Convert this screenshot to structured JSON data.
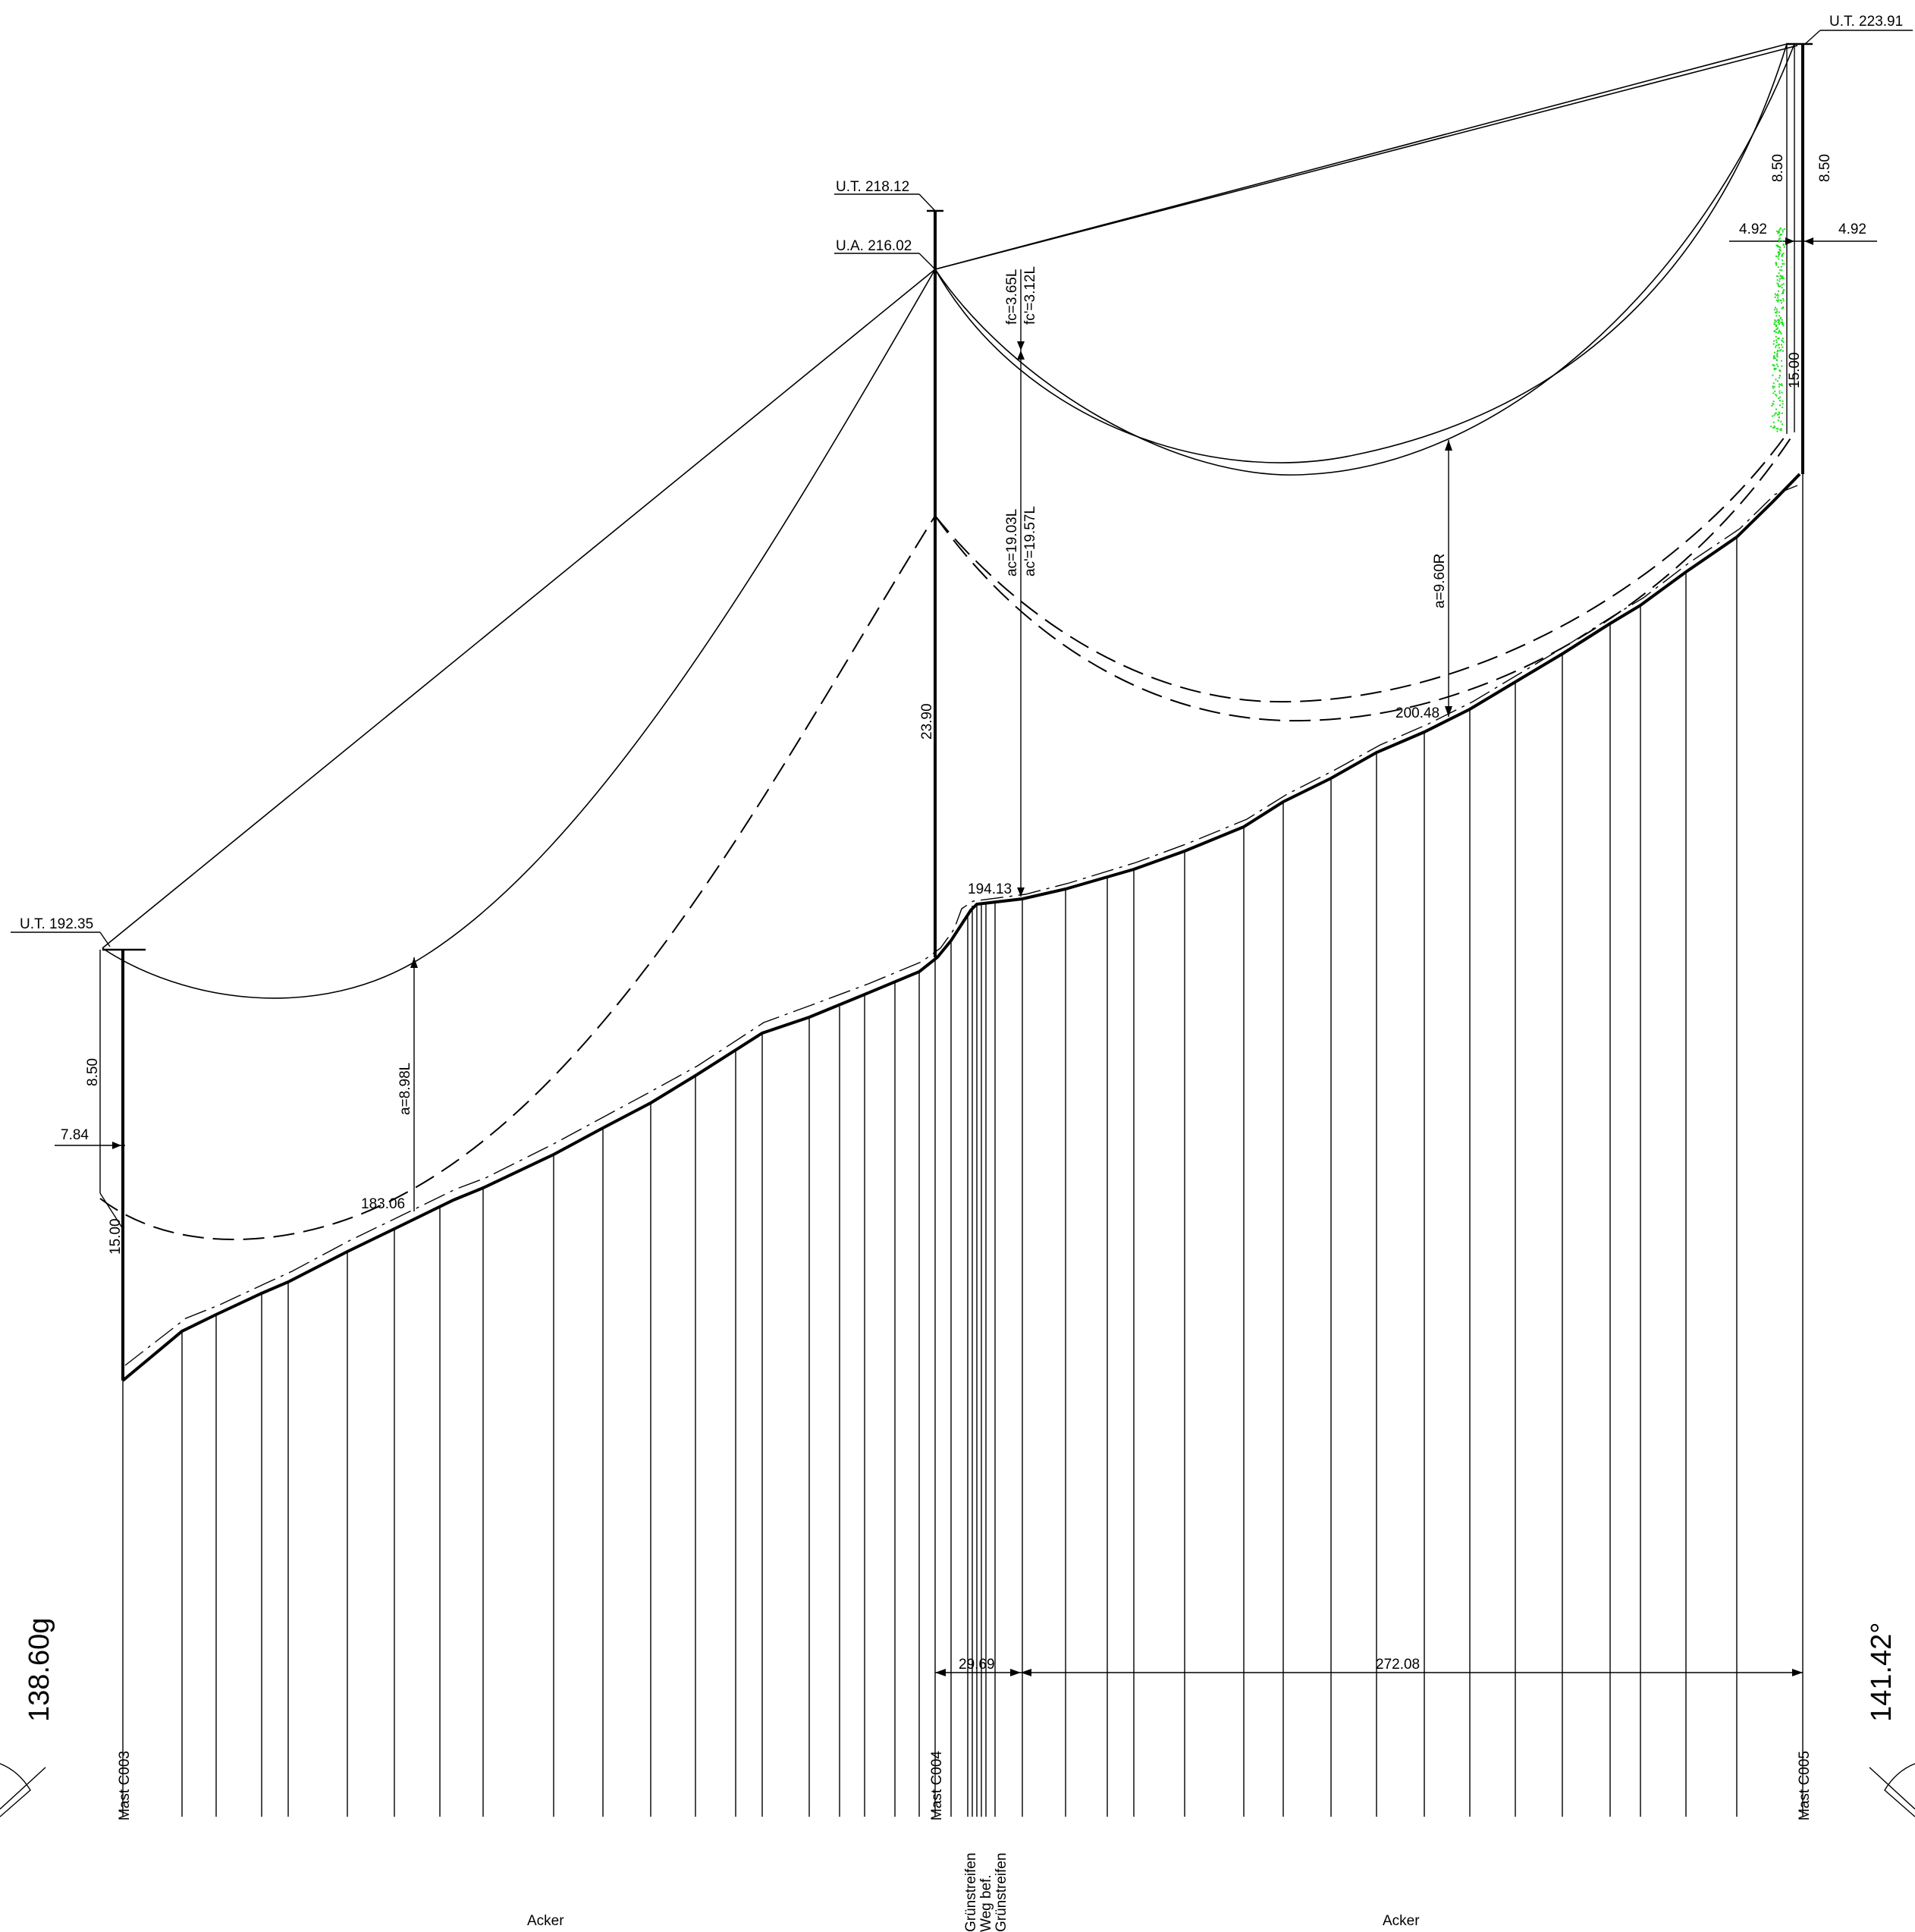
{
  "towers": [
    {
      "mast_label": "Mast C003",
      "ut_label": "U.T. 192.35"
    },
    {
      "mast_label": "Mast C004",
      "ut_label": "U.T. 218.12",
      "ua_label": "U.A. 216.02"
    },
    {
      "mast_label": "Mast C005",
      "ut_label": "U.T. 223.91"
    }
  ],
  "angles": {
    "left": "138.60g",
    "right": "141.42°"
  },
  "dimensions": {
    "left_arm_height": "8.50",
    "left_arm_width": "7.84",
    "left_clearance": "15.00",
    "left_span_a": "a=8.98L",
    "left_ground_point": "183.06",
    "mid_height": "23.90",
    "mid_fc": "fc=3.65L",
    "mid_fc_prime": "fc'=3.12L",
    "mid_ac": "ac=19.03L",
    "mid_ac_prime": "ac'=19.57L",
    "mid_ground_point": "194.13",
    "right_span_a": "a=9.60R",
    "right_ground_point": "200.48",
    "right_arm_height_1": "8.50",
    "right_arm_height_2": "8.50",
    "right_arm_width_1": "4.92",
    "right_arm_width_2": "4.92",
    "right_clearance": "15.00",
    "crossing_width": "29.69",
    "span_length": "272.08"
  },
  "land_use": {
    "left_field": "Acker",
    "right_field": "Acker",
    "strip_1": "Grünstreifen",
    "strip_2": "Weg bef.",
    "strip_3": "Grünstreifen"
  },
  "colors": {
    "line": "#000000",
    "vegetation": "#22e022"
  }
}
